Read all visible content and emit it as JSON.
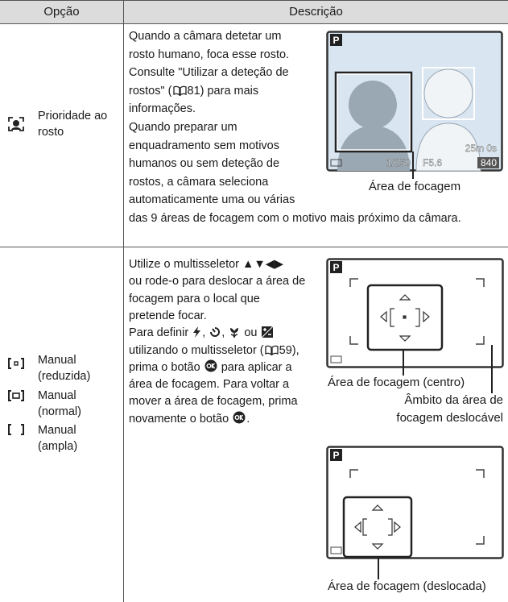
{
  "table": {
    "headers": [
      "Opção",
      "Descrição"
    ],
    "rows": [
      {
        "options": [
          "Prioridade ao rosto"
        ],
        "description": [
          "Quando a câmara detetar um",
          "rosto humano, foca esse rosto.",
          "Consulte \"Utilizar a deteção de",
          [
            "rostos\" (",
            "81) para mais"
          ],
          "informações.",
          "Quando preparar um",
          "enquadramento sem motivos",
          "humanos ou sem deteção de",
          "rostos, a câmara seleciona",
          "automaticamente uma ou várias",
          "das 9 áreas de focagem com o motivo mais próximo da câmara."
        ],
        "screens": [
          {
            "mode": "P",
            "shutter": "1/250",
            "aperture": "F5.6",
            "time": "25m 0s",
            "shots": "840"
          }
        ],
        "captions": [
          "Área de focagem"
        ]
      },
      {
        "options": [
          "Manual (reduzida)",
          "Manual (normal)",
          "Manual (ampla)"
        ],
        "description": [
          "Utilize o multisseletor ▲▼◀▶",
          "ou rode-o para deslocar a área de",
          "focagem para o local que",
          "pretende focar.",
          [
            "Para definir ",
            ", ",
            ", ",
            " ou "
          ],
          [
            "utilizando o multisseletor (",
            "59),"
          ],
          [
            "prima o botão ",
            " para aplicar a"
          ],
          "área de focagem. Para voltar a",
          "mover a área de focagem, prima",
          [
            "novamente o botão ",
            "."
          ]
        ],
        "screens": [
          {
            "mode": "P"
          },
          {
            "mode": "P"
          }
        ],
        "captions": [
          "Área de focagem (centro)",
          [
            "Âmbito da área de",
            "focagem deslocável"
          ],
          "Área de focagem (deslocada)"
        ]
      }
    ]
  }
}
